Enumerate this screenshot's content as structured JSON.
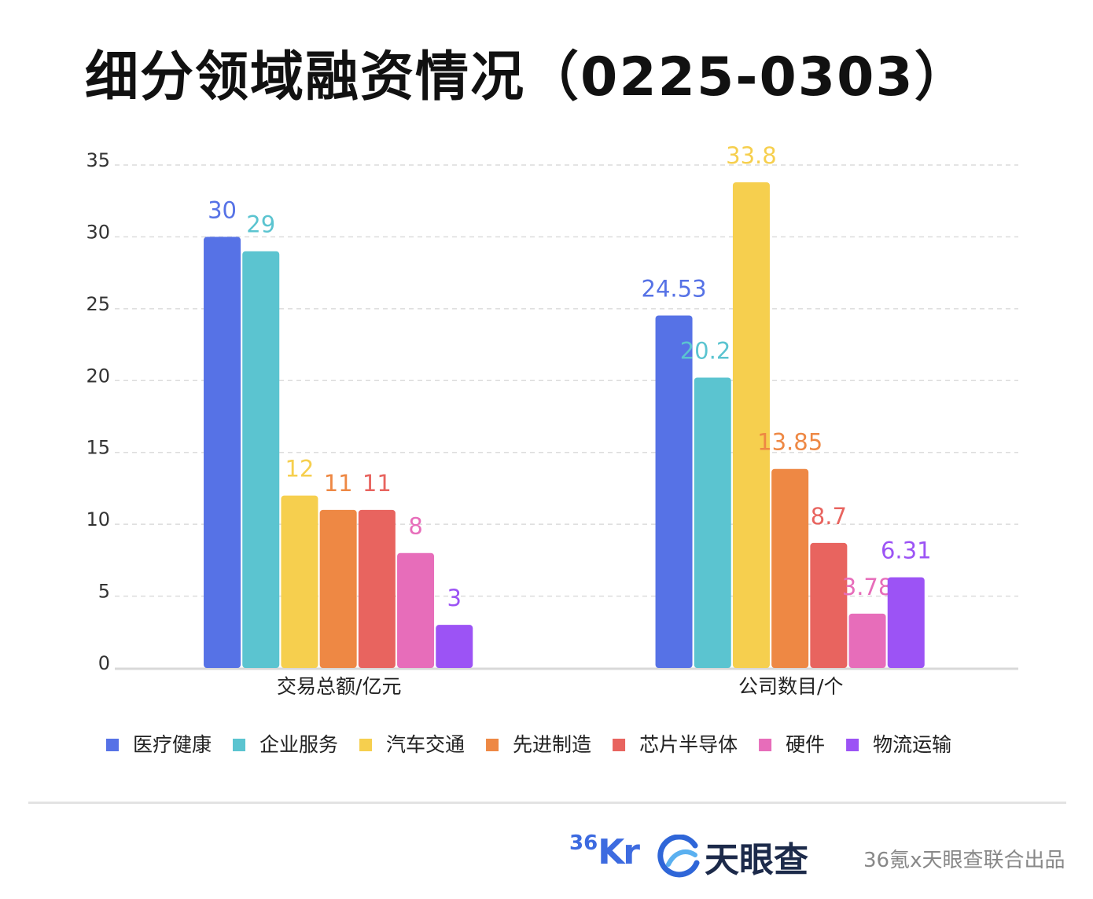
{
  "chart_data": {
    "type": "bar",
    "title": "细分领域融资情况（0225-0303）",
    "categories": [
      "交易总额/亿元",
      "公司数目/个"
    ],
    "series": [
      {
        "name": "医疗健康",
        "color": "#5672e6",
        "values": [
          30,
          24.53
        ],
        "labels": [
          "30",
          "24.53"
        ]
      },
      {
        "name": "企业服务",
        "color": "#5bc4d0",
        "values": [
          29,
          20.21
        ],
        "labels": [
          "29",
          "20.21"
        ]
      },
      {
        "name": "汽车交通",
        "color": "#f6cf4e",
        "values": [
          12,
          33.8
        ],
        "labels": [
          "12",
          "33.8"
        ]
      },
      {
        "name": "先进制造",
        "color": "#ee8844",
        "values": [
          11,
          13.85
        ],
        "labels": [
          "11",
          "13.85"
        ]
      },
      {
        "name": "芯片半导体",
        "color": "#e8645f",
        "values": [
          11,
          8.7
        ],
        "labels": [
          "11",
          "8.7"
        ]
      },
      {
        "name": "硬件",
        "color": "#e76dba",
        "values": [
          8,
          3.78
        ],
        "labels": [
          "8",
          "3.78"
        ]
      },
      {
        "name": "物流运输",
        "color": "#9c53f5",
        "values": [
          3,
          6.31
        ],
        "labels": [
          "3",
          "6.31"
        ]
      }
    ],
    "yticks": [
      "0",
      "5",
      "10",
      "15",
      "20",
      "25",
      "30",
      "35"
    ],
    "ylim": [
      0,
      35
    ],
    "grid": true,
    "legend": "bottom"
  },
  "footer": {
    "brand_36kr_sup": "36",
    "brand_36kr_main": "Kr",
    "brand_tyc": "天眼查",
    "credit": "36氪x天眼查联合出品"
  }
}
